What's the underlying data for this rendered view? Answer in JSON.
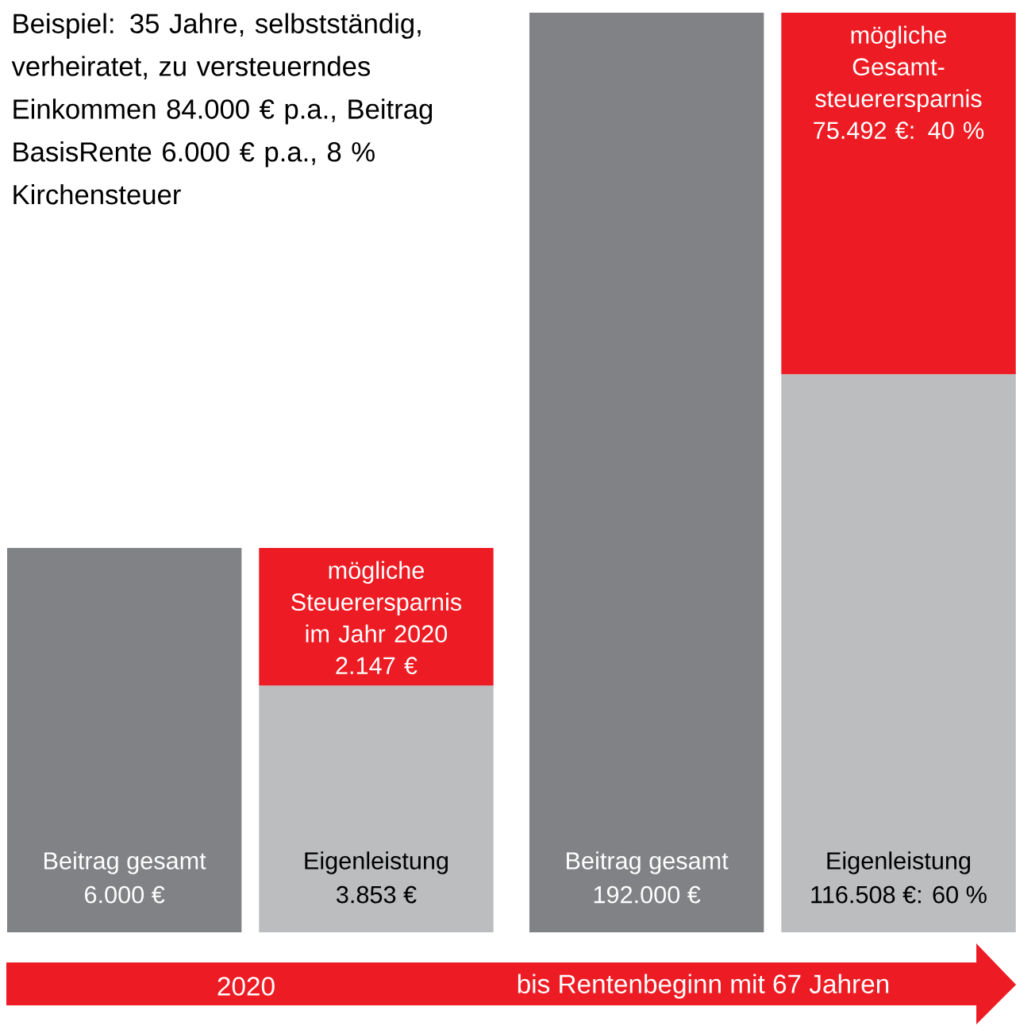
{
  "chart_data": [
    {
      "type": "bar",
      "stacked": true,
      "tick_labels": false,
      "title": "Beispiel: 35 Jahre, selbstständig, verheiratet, zu versteuerndes Einkommen 84.000 € p.a., Beitrag BasisRente 6.000 € p.a., 8 % Kirchensteuer",
      "xlabel": "2020",
      "categories": [
        "Beitrag gesamt",
        "Eigenleistung"
      ],
      "ylim": [
        0,
        6000
      ],
      "series": [
        {
          "colors": [
            "#818286",
            "#bcbdbf"
          ],
          "values": [
            6000,
            3853
          ],
          "value_labels": [
            "6.000 €",
            "3.853 €"
          ]
        },
        {
          "color": "#ed1c24",
          "values": [
            null,
            2147
          ],
          "value_labels": [
            null,
            "mögliche Steuerersparnis im Jahr 2020 2.147 €"
          ]
        }
      ]
    },
    {
      "type": "bar",
      "stacked": true,
      "tick_labels": false,
      "xlabel": "bis Rentenbeginn mit 67 Jahren",
      "categories": [
        "Beitrag gesamt",
        "Eigenleistung"
      ],
      "ylim": [
        0,
        192000
      ],
      "series": [
        {
          "colors": [
            "#818286",
            "#bcbdbf"
          ],
          "values": [
            192000,
            116508
          ],
          "value_labels": [
            "192.000 €",
            "116.508 €: 60 %"
          ]
        },
        {
          "color": "#ed1c24",
          "values": [
            null,
            75492
          ],
          "value_labels": [
            null,
            "mögliche Gesamt-steuerersparnis 75.492 €: 40 %"
          ]
        }
      ]
    }
  ]
}
